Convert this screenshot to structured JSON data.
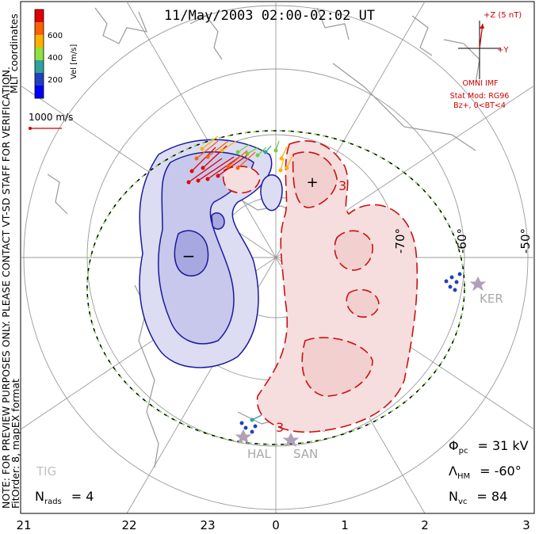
{
  "title": "11/May/2003 02:00-02:02 UT",
  "side_notes": {
    "preview": "NOTE: FOR PREVIEW PURPOSES ONLY. PLEASE CONTACT VT-SD STAFF FOR VERIFICATION.",
    "fit": "FitOrder: 8, mapEX format",
    "coords": "MLT coordinates"
  },
  "color_scale": {
    "label": "Vel [m/s]",
    "ticks": [
      "600",
      "400",
      "200"
    ],
    "colors": [
      "#e00000",
      "#ff6000",
      "#ffb000",
      "#90e040",
      "#30a0a0",
      "#2040c0",
      "#0000ff"
    ]
  },
  "reference_vector": {
    "label": "1000 m/s",
    "color": "#cc0000"
  },
  "imf": {
    "z_label": "+Z (5 nT)",
    "y_label": "+Y",
    "source": "OMNI IMF",
    "model_line1": "Stat Mod: RG96",
    "model_line2": "Bz+, 0<BT<4",
    "color": "#d00000"
  },
  "stations": [
    "KER",
    "HAL",
    "SAN",
    "TIG"
  ],
  "latitude_labels": [
    "-70°",
    "-60°",
    "-50°"
  ],
  "mlt_ticks": [
    "21",
    "22",
    "23",
    "0",
    "1",
    "2",
    "3"
  ],
  "stats": {
    "phi_prefix": "Φ",
    "phi_sub": "pc",
    "phi_value": "= 31 kV",
    "lambda_prefix": "Λ",
    "lambda_sub": "HM",
    "lambda_value": "= -60°",
    "nvc_prefix": "N",
    "nvc_sub": "vc",
    "nvc_value": "= 84",
    "nrads_prefix": "N",
    "nrads_sub": "rads",
    "nrads_value": "= 4"
  },
  "potential_extrema": {
    "min_marker": "−",
    "max_marker": "+"
  },
  "contour_label": "3"
}
